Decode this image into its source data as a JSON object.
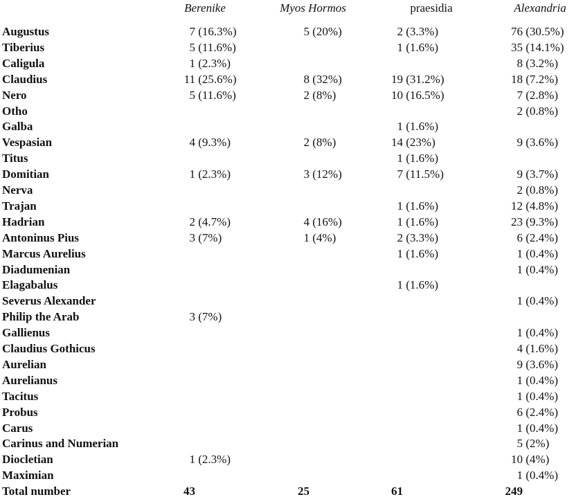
{
  "table": {
    "header": [
      "Berenike",
      "Myos Hormos",
      "praesidia",
      "Alexandria"
    ],
    "rows": [
      {
        "label": "Augustus",
        "cells": [
          "7 (16.3%)",
          "5 (20%)",
          "2 (3.3%)",
          "76 (30.5%)"
        ]
      },
      {
        "label": "Tiberius",
        "cells": [
          "5 (11.6%)",
          null,
          "1 (1.6%)",
          "35 (14.1%)"
        ]
      },
      {
        "label": "Caligula",
        "cells": [
          "1 (2.3%)",
          null,
          null,
          "8 (3.2%)"
        ]
      },
      {
        "label": "Claudius",
        "cells": [
          "11 (25.6%)",
          "8 (32%)",
          "19 (31.2%)",
          "18 (7.2%)"
        ]
      },
      {
        "label": "Nero",
        "cells": [
          "5 (11.6%)",
          "2 (8%)",
          "10 (16.5%)",
          "7 (2.8%)"
        ]
      },
      {
        "label": "Otho",
        "cells": [
          null,
          null,
          null,
          "2 (0.8%)"
        ]
      },
      {
        "label": "Galba",
        "cells": [
          null,
          null,
          "1 (1.6%)",
          null
        ]
      },
      {
        "label": "Vespasian",
        "cells": [
          "4 (9.3%)",
          "2 (8%)",
          "14 (23%)",
          "9 (3.6%)"
        ]
      },
      {
        "label": "Titus",
        "cells": [
          null,
          null,
          "1 (1.6%)",
          null
        ]
      },
      {
        "label": "Domitian",
        "cells": [
          "1 (2.3%)",
          "3 (12%)",
          "7 (11.5%)",
          "9 (3.7%)"
        ]
      },
      {
        "label": "Nerva",
        "cells": [
          null,
          null,
          null,
          "2 (0.8%)"
        ]
      },
      {
        "label": "Trajan",
        "cells": [
          null,
          null,
          "1 (1.6%)",
          "12 (4.8%)"
        ]
      },
      {
        "label": "Hadrian",
        "cells": [
          "2 (4.7%)",
          "4 (16%)",
          "1 (1.6%)",
          "23 (9.3%)"
        ]
      },
      {
        "label": "Antoninus Pius",
        "cells": [
          "3 (7%)",
          "1 (4%)",
          "2 (3.3%)",
          "6 (2.4%)"
        ]
      },
      {
        "label": "Marcus Aurelius",
        "cells": [
          null,
          null,
          "1 (1.6%)",
          "1 (0.4%)"
        ]
      },
      {
        "label": "Diadumenian",
        "cells": [
          null,
          null,
          null,
          "1 (0.4%)"
        ]
      },
      {
        "label": "Elagabalus",
        "cells": [
          null,
          null,
          "1 (1.6%)",
          null
        ]
      },
      {
        "label": "Severus Alexander",
        "cells": [
          null,
          null,
          null,
          "1 (0.4%)"
        ]
      },
      {
        "label": "Philip the Arab",
        "cells": [
          "3 (7%)",
          null,
          null,
          null
        ]
      },
      {
        "label": "Gallienus",
        "cells": [
          null,
          null,
          null,
          "1 (0.4%)"
        ]
      },
      {
        "label": "Claudius Gothicus",
        "cells": [
          null,
          null,
          null,
          "4 (1.6%)"
        ]
      },
      {
        "label": "Aurelian",
        "cells": [
          null,
          null,
          null,
          "9 (3.6%)"
        ]
      },
      {
        "label": "Aurelianus",
        "cells": [
          null,
          null,
          null,
          "1 (0.4%)"
        ]
      },
      {
        "label": "Tacitus",
        "cells": [
          null,
          null,
          null,
          "1 (0.4%)"
        ]
      },
      {
        "label": "Probus",
        "cells": [
          null,
          null,
          null,
          "6 (2.4%)"
        ]
      },
      {
        "label": "Carus",
        "cells": [
          null,
          null,
          null,
          "1 (0.4%)"
        ]
      },
      {
        "label": "Carinus and Numerian",
        "cells": [
          null,
          null,
          null,
          "5 (2%)"
        ]
      },
      {
        "label": "Diocletian",
        "cells": [
          "1 (2.3%)",
          null,
          null,
          "10 (4%)"
        ]
      },
      {
        "label": "Maximian",
        "cells": [
          null,
          null,
          null,
          "1 (0.4%)"
        ]
      }
    ],
    "total": {
      "label": "Total number",
      "cells": [
        "43",
        "25",
        "61",
        "249"
      ]
    }
  }
}
